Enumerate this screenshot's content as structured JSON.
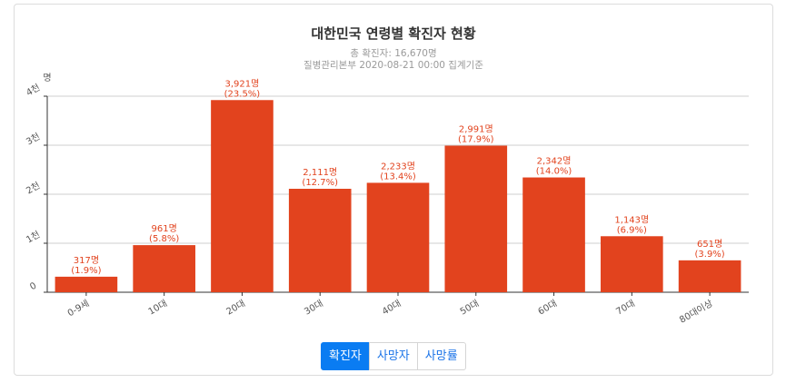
{
  "chart_data": {
    "type": "bar",
    "title": "대한민국 연령별 확진자 현황",
    "subtitle": "총 확진자: 16,670명",
    "source": "질병관리본부 2020-08-21 00:00 집계기준",
    "ylabel": "명",
    "ylim": [
      0,
      4000
    ],
    "yticks": [
      0,
      1000,
      2000,
      3000,
      4000
    ],
    "ytick_labels": [
      "0",
      "1천",
      "2천",
      "3천",
      "4천"
    ],
    "grid": true,
    "categories": [
      "0-9세",
      "10대",
      "20대",
      "30대",
      "40대",
      "50대",
      "60대",
      "70대",
      "80대이상"
    ],
    "values": [
      317,
      961,
      3921,
      2111,
      2233,
      2991,
      2342,
      1143,
      651
    ],
    "value_labels": [
      "317명",
      "961명",
      "3,921명",
      "2,111명",
      "2,233명",
      "2,991명",
      "2,342명",
      "1,143명",
      "651명"
    ],
    "percent_labels": [
      "(1.9%)",
      "(5.8%)",
      "(23.5%)",
      "(12.7%)",
      "(13.4%)",
      "(17.9%)",
      "(14.0%)",
      "(6.9%)",
      "(3.9%)"
    ],
    "bar_color": "#e2431e"
  },
  "toggle": {
    "buttons": [
      "확진자",
      "사망자",
      "사망률"
    ],
    "active_index": 0
  },
  "colors": {
    "active_button": "#0a7cf2",
    "button_text": "#1a73e8"
  }
}
